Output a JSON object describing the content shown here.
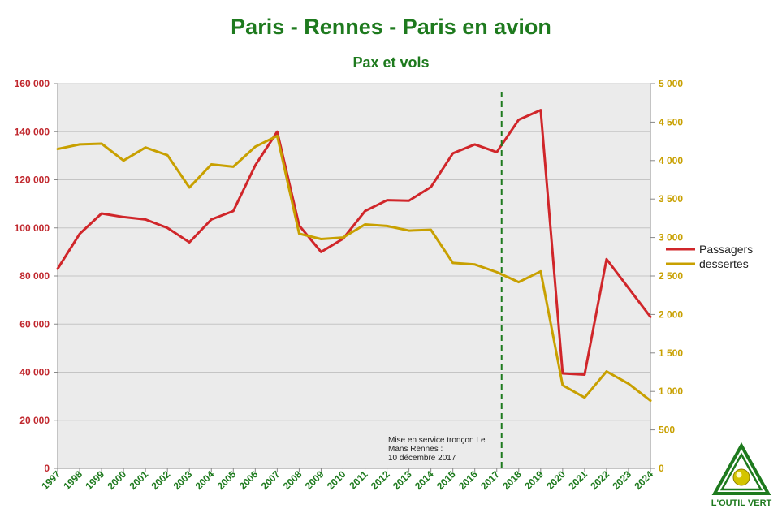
{
  "chart_data": {
    "type": "line",
    "title": "Paris - Rennes - Paris en avion",
    "subtitle": "Pax et vols",
    "x": [
      "1997",
      "1998",
      "1999",
      "2000",
      "2001",
      "2002",
      "2003",
      "2004",
      "2005",
      "2006",
      "2007",
      "2008",
      "2009",
      "2010",
      "2011",
      "2012",
      "2013",
      "2014",
      "2015",
      "2016",
      "2017",
      "2018",
      "2019",
      "2020",
      "2021",
      "2022",
      "2023",
      "2024"
    ],
    "y_left": {
      "range": [
        0,
        160000
      ],
      "ticks": [
        "0",
        "20 000",
        "40 000",
        "60 000",
        "80 000",
        "100 000",
        "120 000",
        "140 000",
        "160 000"
      ],
      "color": "#c0272d"
    },
    "y_right": {
      "range": [
        0,
        5000
      ],
      "ticks": [
        "0",
        "500",
        "1 000",
        "1 500",
        "2 000",
        "2 500",
        "3 000",
        "3 500",
        "4 000",
        "4 500",
        "5 000"
      ],
      "color": "#c8a000"
    },
    "series": [
      {
        "name": "Passagers",
        "axis": "left",
        "color": "#d0262a",
        "values": [
          83000,
          97500,
          106000,
          104500,
          103500,
          100000,
          94000,
          103500,
          107000,
          126000,
          140000,
          101000,
          90000,
          95500,
          107000,
          111500,
          111300,
          117000,
          131000,
          134700,
          131500,
          145000,
          149000,
          39500,
          39000,
          87000,
          75000,
          63000
        ]
      },
      {
        "name": "dessertes",
        "axis": "right",
        "color": "#c8a000",
        "values": [
          4150,
          4210,
          4220,
          4000,
          4170,
          4070,
          3650,
          3950,
          3920,
          4180,
          4320,
          3050,
          2980,
          3000,
          3170,
          3150,
          3090,
          3100,
          2670,
          2650,
          2550,
          2420,
          2560,
          1080,
          920,
          1260,
          1100,
          880
        ]
      }
    ],
    "vline": {
      "x": "2017",
      "color": "#1e7a1e",
      "style": "dashed"
    },
    "annotation": {
      "lines": [
        "Mise en service tronçon Le",
        "Mans Rennes :",
        "10 décembre 2017"
      ]
    },
    "legend_position": "right",
    "grid": true
  },
  "logo": {
    "text": "L'OUTIL VERT"
  }
}
